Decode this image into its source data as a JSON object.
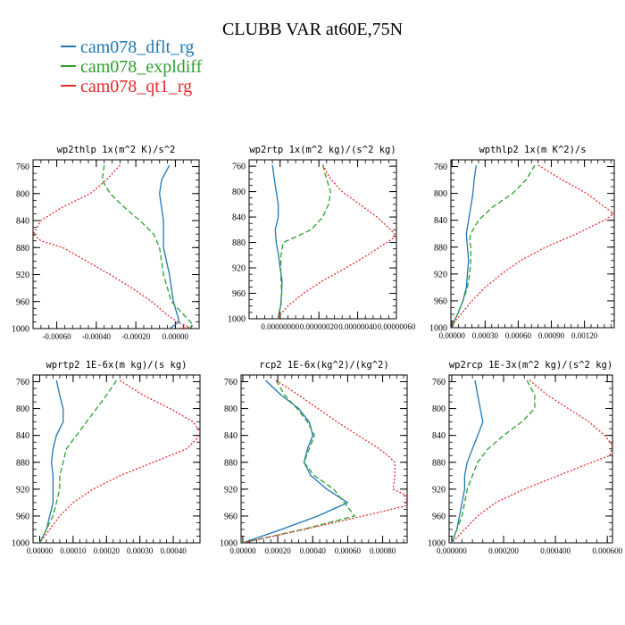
{
  "figure": {
    "title": "CLUBB VAR at60E,75N",
    "legend": [
      {
        "name": "cam078_dflt_rg",
        "color": "#1f77b4"
      },
      {
        "name": "cam078_expldiff",
        "color": "#2ca02c"
      },
      {
        "name": "cam078_qt1_rg",
        "color": "#e8282c"
      }
    ]
  },
  "chart_data": [
    {
      "type": "line",
      "title": "wp2thlp  1x(m^2 K)/s^2",
      "xlim": [
        -0.00072,
        0.00012
      ],
      "ylim": [
        1000,
        750
      ],
      "yticks": [
        760,
        800,
        840,
        880,
        920,
        960,
        1000
      ],
      "xticks": [
        -0.0006,
        -0.0004,
        -0.0002,
        0.0
      ],
      "xticklabels": [
        "-0.00060",
        "-0.00040",
        "-0.00020",
        "0.00000"
      ],
      "series": [
        {
          "name": "cam078_dflt_rg",
          "color": "#1f77b4",
          "dash": "",
          "y": [
            758,
            780,
            800,
            820,
            840,
            880,
            920,
            960,
            990,
            1000
          ],
          "x": [
            -3e-05,
            -7e-05,
            -8e-05,
            -7e-05,
            -6e-05,
            -6e-05,
            -3e-05,
            -1e-05,
            2e-05,
            -3e-05
          ]
        },
        {
          "name": "cam078_expldiff",
          "color": "#2ca02c",
          "dash": "6,3",
          "y": [
            758,
            780,
            800,
            820,
            840,
            860,
            880,
            920,
            960,
            985,
            995,
            1000
          ],
          "x": [
            -0.00036,
            -0.00037,
            -0.00033,
            -0.00026,
            -0.00018,
            -0.00011,
            -8e-05,
            -6e-05,
            -2e-05,
            6e-05,
            9e-05,
            7e-05
          ]
        },
        {
          "name": "cam078_qt1_rg",
          "color": "#e8282c",
          "dash": "2,2",
          "y": [
            758,
            780,
            800,
            820,
            840,
            860,
            870,
            880,
            900,
            920,
            940,
            960,
            980,
            990,
            998,
            1000
          ],
          "x": [
            -0.00028,
            -0.00035,
            -0.00043,
            -0.00057,
            -0.00068,
            -0.00072,
            -0.00068,
            -0.00057,
            -0.00045,
            -0.00033,
            -0.00022,
            -0.00012,
            -4e-05,
            1e-05,
            7e-05,
            2e-05
          ]
        }
      ]
    },
    {
      "type": "line",
      "title": "wp2rtp  1x(m^2 kg)/(s^2 kg)",
      "xlim": [
        -1.6e-07,
        6e-07
      ],
      "ylim": [
        1000,
        750
      ],
      "yticks": [
        760,
        800,
        840,
        880,
        920,
        960,
        1000
      ],
      "xticks": [
        0.0,
        2e-07,
        4e-07,
        6e-07
      ],
      "xticklabels": [
        "0.00000000",
        "0.00000020",
        "0.00000040",
        "0.00000060"
      ],
      "series": [
        {
          "name": "cam078_dflt_rg",
          "color": "#1f77b4",
          "dash": "",
          "y": [
            758,
            780,
            800,
            820,
            840,
            860,
            880,
            900,
            920,
            940,
            960,
            980,
            997,
            1000
          ],
          "x": [
            -4e-08,
            -3e-08,
            -2e-08,
            -1e-08,
            -1e-08,
            -2.5e-08,
            -2e-08,
            -8e-09,
            0.0,
            1e-08,
            8e-09,
            2e-09,
            -1e-08,
            -1e-08
          ]
        },
        {
          "name": "cam078_expldiff",
          "color": "#2ca02c",
          "dash": "6,3",
          "y": [
            758,
            780,
            800,
            820,
            840,
            860,
            870,
            880,
            900,
            920,
            940,
            960,
            980,
            997,
            1000
          ],
          "x": [
            2.2e-07,
            2.4e-07,
            2.6e-07,
            2.5e-07,
            2.2e-07,
            1.6e-07,
            9e-08,
            1.5e-08,
            5e-09,
            3e-09,
            5e-09,
            8e-09,
            4e-09,
            -1e-08,
            -1e-08
          ]
        },
        {
          "name": "cam078_qt1_rg",
          "color": "#e8282c",
          "dash": "2,2",
          "y": [
            758,
            780,
            800,
            820,
            840,
            860,
            870,
            880,
            900,
            920,
            940,
            960,
            980,
            997,
            1000
          ],
          "x": [
            2.2e-07,
            2.6e-07,
            3.2e-07,
            4.1e-07,
            5e-07,
            5.7e-07,
            6e-07,
            5.5e-07,
            4.5e-07,
            3.4e-07,
            2.2e-07,
            1.2e-07,
            4e-08,
            -1e-08,
            -1e-08
          ]
        }
      ]
    },
    {
      "type": "line",
      "title": "wpthlp2  1x(m K^2)/s",
      "xlim": [
        -1e-05,
        0.00147
      ],
      "ylim": [
        1000,
        750
      ],
      "yticks": [
        760,
        800,
        840,
        880,
        920,
        960,
        1000
      ],
      "xticks": [
        0.0,
        0.0003,
        0.0006,
        0.0009,
        0.0012
      ],
      "xticklabels": [
        "0.00000",
        "0.00030",
        "0.00060",
        "0.00090",
        "0.00120"
      ],
      "series": [
        {
          "name": "cam078_dflt_rg",
          "color": "#1f77b4",
          "dash": "",
          "y": [
            758,
            780,
            800,
            820,
            840,
            860,
            880,
            900,
            920,
            940,
            960,
            980,
            990,
            1000
          ],
          "x": [
            0.00022,
            0.0002,
            0.00019,
            0.00017,
            0.00015,
            0.00013,
            0.00014,
            0.00015,
            0.00014,
            0.00013,
            0.0001,
            5e-05,
            2e-05,
            0.0
          ]
        },
        {
          "name": "cam078_expldiff",
          "color": "#2ca02c",
          "dash": "6,3",
          "y": [
            758,
            780,
            800,
            820,
            840,
            860,
            870,
            880,
            900,
            920,
            940,
            960,
            980,
            990,
            1000
          ],
          "x": [
            0.00075,
            0.00067,
            0.00055,
            0.00037,
            0.00024,
            0.00017,
            0.00016,
            0.00017,
            0.00017,
            0.00016,
            0.00014,
            0.0001,
            5e-05,
            2e-05,
            0.0
          ]
        },
        {
          "name": "cam078_qt1_rg",
          "color": "#e8282c",
          "dash": "2,2",
          "y": [
            758,
            780,
            800,
            820,
            830,
            840,
            860,
            880,
            900,
            920,
            940,
            960,
            980,
            990,
            1000
          ],
          "x": [
            0.00078,
            0.001,
            0.00122,
            0.00138,
            0.00147,
            0.00138,
            0.00113,
            0.00085,
            0.00062,
            0.00045,
            0.0003,
            0.00018,
            8e-05,
            3e-05,
            0.0
          ]
        }
      ]
    },
    {
      "type": "line",
      "title": "wprtp2  1E-6x(m kg)/(s kg)",
      "xlim": [
        -2e-05,
        0.00048
      ],
      "ylim": [
        1000,
        750
      ],
      "yticks": [
        760,
        800,
        840,
        880,
        920,
        960,
        1000
      ],
      "xticks": [
        0.0,
        0.0001,
        0.0002,
        0.0003,
        0.0004
      ],
      "xticklabels": [
        "0.00000",
        "0.00010",
        "0.00020",
        "0.00030",
        "0.00040"
      ],
      "series": [
        {
          "name": "cam078_dflt_rg",
          "color": "#1f77b4",
          "dash": "",
          "y": [
            758,
            780,
            800,
            820,
            830,
            840,
            860,
            880,
            900,
            920,
            940,
            960,
            980,
            1000
          ],
          "x": [
            5e-05,
            6e-05,
            7e-05,
            7e-05,
            6e-05,
            5e-05,
            4e-05,
            3.5e-05,
            4e-05,
            4e-05,
            4e-05,
            3e-05,
            2e-05,
            0.0
          ]
        },
        {
          "name": "cam078_expldiff",
          "color": "#2ca02c",
          "dash": "6,3",
          "y": [
            758,
            780,
            800,
            820,
            840,
            860,
            880,
            900,
            920,
            940,
            960,
            980,
            1000
          ],
          "x": [
            0.00023,
            0.0002,
            0.00017,
            0.00014,
            0.00011,
            8e-05,
            7e-05,
            6e-05,
            6e-05,
            5e-05,
            4e-05,
            2e-05,
            0.0
          ]
        },
        {
          "name": "cam078_qt1_rg",
          "color": "#e8282c",
          "dash": "2,2",
          "y": [
            758,
            780,
            800,
            820,
            835,
            845,
            860,
            880,
            900,
            920,
            940,
            960,
            980,
            1000
          ],
          "x": [
            0.00024,
            0.00031,
            0.00039,
            0.00046,
            0.00048,
            0.00047,
            0.00044,
            0.00034,
            0.00024,
            0.00016,
            0.0001,
            6e-05,
            3e-05,
            0.0
          ]
        }
      ]
    },
    {
      "type": "line",
      "title": "rcp2  1E-6x(kg^2)/(kg^2)",
      "xlim": [
        -1e-05,
        0.00094
      ],
      "ylim": [
        1000,
        750
      ],
      "yticks": [
        760,
        800,
        840,
        880,
        920,
        960,
        1000
      ],
      "xticks": [
        0.0,
        0.0002,
        0.0004,
        0.0006,
        0.0008
      ],
      "xticklabels": [
        "0.00000",
        "0.00020",
        "0.00040",
        "0.00060",
        "0.00080"
      ],
      "series": [
        {
          "name": "cam078_dflt_rg",
          "color": "#1f77b4",
          "dash": "",
          "y": [
            758,
            780,
            800,
            820,
            840,
            860,
            880,
            900,
            920,
            940,
            960,
            980,
            1000
          ],
          "x": [
            0.00013,
            0.00022,
            0.00032,
            0.00038,
            0.0004,
            0.00037,
            0.00035,
            0.00039,
            0.00048,
            0.0006,
            0.00043,
            0.00022,
            0.0
          ]
        },
        {
          "name": "cam078_expldiff",
          "color": "#2ca02c",
          "dash": "6,3",
          "y": [
            758,
            780,
            800,
            820,
            840,
            860,
            880,
            900,
            920,
            940,
            960,
            980,
            1000
          ],
          "x": [
            0.00019,
            0.00024,
            0.00031,
            0.00037,
            0.00041,
            0.00038,
            0.00035,
            0.00041,
            0.00052,
            0.00058,
            0.00064,
            0.00034,
            0.0
          ]
        },
        {
          "name": "cam078_qt1_rg",
          "color": "#e8282c",
          "dash": "2,2",
          "y": [
            758,
            780,
            800,
            820,
            840,
            860,
            870,
            880,
            900,
            920,
            930,
            945,
            960,
            980,
            1000
          ],
          "x": [
            0.00019,
            0.00032,
            0.00043,
            0.00054,
            0.00066,
            0.00078,
            0.00083,
            0.00087,
            0.00087,
            0.00086,
            0.00094,
            0.00093,
            0.00069,
            0.00035,
            0.0
          ]
        }
      ]
    },
    {
      "type": "line",
      "title": "wp2rcp  1E-3x(m^2 kg)/(s^2 kg)",
      "xlim": [
        -1e-05,
        0.00062
      ],
      "ylim": [
        1000,
        750
      ],
      "yticks": [
        760,
        800,
        840,
        880,
        920,
        960,
        1000
      ],
      "xticks": [
        0.0,
        0.0002,
        0.0004,
        0.0006
      ],
      "xticklabels": [
        "0.000000",
        "0.000200",
        "0.000400",
        "0.000600"
      ],
      "series": [
        {
          "name": "cam078_dflt_rg",
          "color": "#1f77b4",
          "dash": "",
          "y": [
            758,
            780,
            800,
            820,
            830,
            840,
            860,
            880,
            900,
            920,
            940,
            960,
            980,
            1000
          ],
          "x": [
            9e-05,
            0.0001,
            0.00011,
            0.00012,
            0.00011,
            0.0001,
            8e-05,
            6e-05,
            5e-05,
            5e-05,
            4e-05,
            3e-05,
            2e-05,
            0.0
          ]
        },
        {
          "name": "cam078_expldiff",
          "color": "#2ca02c",
          "dash": "6,3",
          "y": [
            758,
            780,
            800,
            820,
            840,
            860,
            880,
            900,
            920,
            940,
            960,
            980,
            1000
          ],
          "x": [
            0.00029,
            0.00032,
            0.00032,
            0.00027,
            0.0002,
            0.00014,
            0.0001,
            8e-05,
            6e-05,
            5e-05,
            4e-05,
            2e-05,
            0.0
          ]
        },
        {
          "name": "cam078_qt1_rg",
          "color": "#e8282c",
          "dash": "2,2",
          "y": [
            758,
            780,
            800,
            820,
            840,
            855,
            870,
            880,
            900,
            920,
            940,
            960,
            980,
            1000
          ],
          "x": [
            0.0003,
            0.00037,
            0.00045,
            0.00053,
            0.00059,
            0.00062,
            0.00061,
            0.00054,
            0.00041,
            0.00028,
            0.00017,
            0.0001,
            5e-05,
            0.0
          ]
        }
      ]
    }
  ]
}
